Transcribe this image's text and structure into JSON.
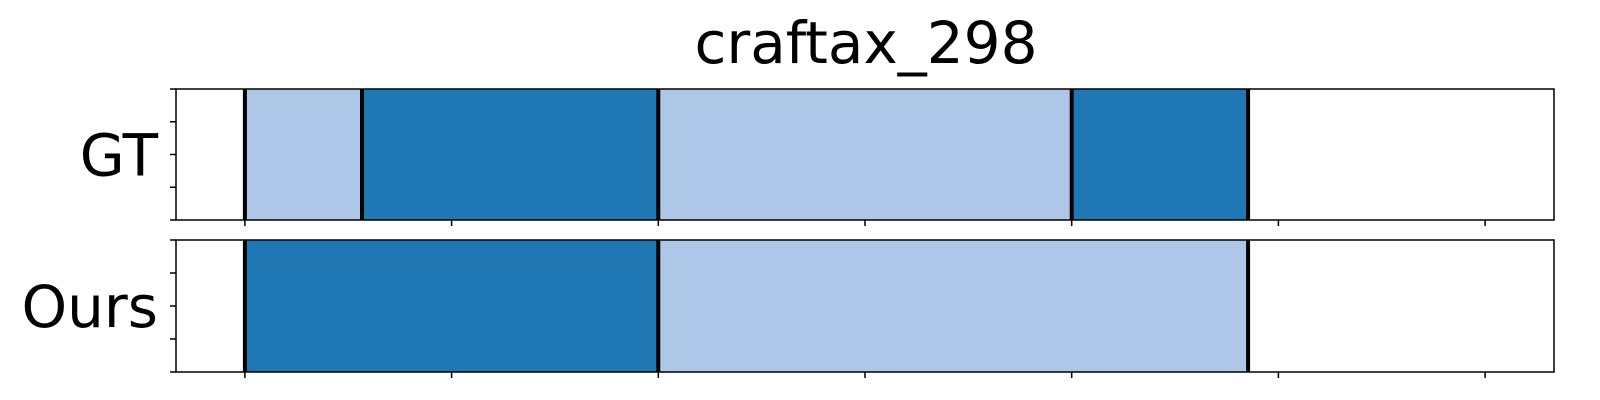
{
  "chart_data": {
    "type": "bar",
    "title": "craftax_298",
    "xlim": [
      0,
      1
    ],
    "x_ticks": [
      0.05,
      0.2,
      0.35,
      0.5,
      0.65,
      0.8,
      0.95
    ],
    "rows": [
      {
        "label": "GT",
        "segments": [
          {
            "start": 0.05,
            "end": 0.135,
            "color": "#aec7e8"
          },
          {
            "start": 0.135,
            "end": 0.35,
            "color": "#1f77b4"
          },
          {
            "start": 0.35,
            "end": 0.65,
            "color": "#aec7e8"
          },
          {
            "start": 0.65,
            "end": 0.778,
            "color": "#1f77b4"
          }
        ]
      },
      {
        "label": "Ours",
        "segments": [
          {
            "start": 0.05,
            "end": 0.35,
            "color": "#1f77b4"
          },
          {
            "start": 0.35,
            "end": 0.778,
            "color": "#aec7e8"
          }
        ]
      }
    ],
    "boundary_color": "#000000",
    "grid": false,
    "legend": "none"
  }
}
